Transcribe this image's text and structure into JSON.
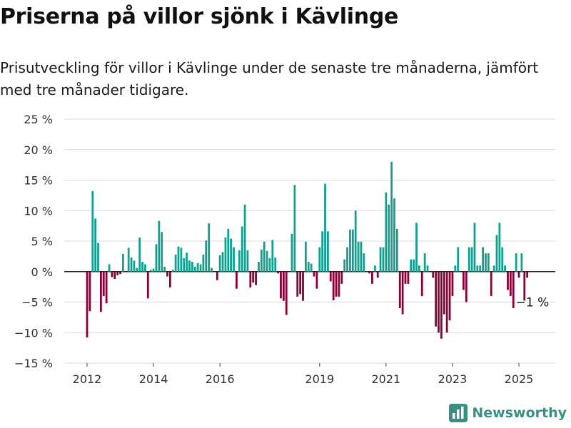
{
  "header": {
    "title": "Priserna på villor sjönk i Kävlinge",
    "subtitle": "Prisutveckling för villor i Kävlinge under de senaste tre månaderna, jämfört med tre månader tidigare."
  },
  "brand": {
    "name": "Newsworthy",
    "icon": "bar-chart-logo-icon"
  },
  "colors": {
    "positive": "#11a08f",
    "negative": "#8b0038",
    "grid": "#d9d9d9",
    "axis": "#222222"
  },
  "chart_data": {
    "type": "bar",
    "xlabel": "",
    "ylabel": "",
    "ylim": [
      -15,
      25
    ],
    "y_ticks": [
      -15,
      -10,
      -5,
      0,
      5,
      10,
      15,
      20,
      25
    ],
    "y_tick_labels": [
      "−15 %",
      "−10 %",
      "−5 %",
      "0 %",
      "5 %",
      "10 %",
      "15 %",
      "20 %",
      "25 %"
    ],
    "x_ticks": [
      2012,
      2014,
      2016,
      2019,
      2021,
      2023,
      2025
    ],
    "x_tick_labels": [
      "2012",
      "2014",
      "2016",
      "2019",
      "2021",
      "2023",
      "2025"
    ],
    "grid": true,
    "annotation": {
      "x": 2025.25,
      "y": -1,
      "text": "−1 %"
    },
    "x": [
      2012.0,
      2012.083,
      2012.167,
      2012.25,
      2012.333,
      2012.417,
      2012.5,
      2012.583,
      2012.667,
      2012.75,
      2012.833,
      2012.917,
      2013.0,
      2013.083,
      2013.167,
      2013.25,
      2013.333,
      2013.417,
      2013.5,
      2013.583,
      2013.667,
      2013.75,
      2013.833,
      2013.917,
      2014.0,
      2014.083,
      2014.167,
      2014.25,
      2014.333,
      2014.417,
      2014.5,
      2014.583,
      2014.667,
      2014.75,
      2014.833,
      2014.917,
      2015.0,
      2015.083,
      2015.167,
      2015.25,
      2015.333,
      2015.417,
      2015.5,
      2015.583,
      2015.667,
      2015.75,
      2015.833,
      2015.917,
      2016.0,
      2016.083,
      2016.167,
      2016.25,
      2016.333,
      2016.417,
      2016.5,
      2016.583,
      2016.667,
      2016.75,
      2016.833,
      2016.917,
      2017.0,
      2017.083,
      2017.167,
      2017.25,
      2017.333,
      2017.417,
      2017.5,
      2017.583,
      2017.667,
      2017.75,
      2017.833,
      2017.917,
      2018.0,
      2018.083,
      2018.167,
      2018.25,
      2018.333,
      2018.417,
      2018.5,
      2018.583,
      2018.667,
      2018.75,
      2018.833,
      2018.917,
      2019.0,
      2019.083,
      2019.167,
      2019.25,
      2019.333,
      2019.417,
      2019.5,
      2019.583,
      2019.667,
      2019.75,
      2019.833,
      2019.917,
      2020.0,
      2020.083,
      2020.167,
      2020.25,
      2020.333,
      2020.417,
      2020.5,
      2020.583,
      2020.667,
      2020.75,
      2020.833,
      2020.917,
      2021.0,
      2021.083,
      2021.167,
      2021.25,
      2021.333,
      2021.417,
      2021.5,
      2021.583,
      2021.667,
      2021.75,
      2021.833,
      2021.917,
      2022.0,
      2022.083,
      2022.167,
      2022.25,
      2022.333,
      2022.417,
      2022.5,
      2022.583,
      2022.667,
      2022.75,
      2022.833,
      2022.917,
      2023.0,
      2023.083,
      2023.167,
      2023.25,
      2023.333,
      2023.417,
      2023.5,
      2023.583,
      2023.667,
      2023.75,
      2023.833,
      2023.917,
      2024.0,
      2024.083,
      2024.167,
      2024.25,
      2024.333,
      2024.417,
      2024.5,
      2024.583,
      2024.667,
      2024.75,
      2024.833,
      2024.917,
      2025.0,
      2025.083,
      2025.167,
      2025.25
    ],
    "values": [
      -10.8,
      -6.5,
      13.2,
      8.7,
      4.7,
      -6.6,
      -4,
      -5.2,
      1.2,
      -0.9,
      -1.2,
      -0.6,
      -0.4,
      2.9,
      0,
      3.9,
      2.3,
      1.8,
      0.6,
      5.6,
      1.6,
      1.2,
      -4.4,
      0.3,
      0.5,
      4.5,
      8.3,
      6.5,
      0.8,
      -0.8,
      -2.6,
      0.3,
      2.8,
      4.1,
      3.9,
      2.2,
      3.1,
      1.8,
      1.6,
      0.8,
      1.4,
      1.2,
      2.8,
      5.1,
      7.9,
      0.6,
      0,
      -1.4,
      2.7,
      3.2,
      5.6,
      7,
      5.4,
      4,
      -2.8,
      3.5,
      7.4,
      11,
      3.5,
      -2.6,
      -1.8,
      -2.2,
      1.6,
      3.6,
      4.9,
      3.4,
      2.2,
      5.2,
      2.3,
      -0.3,
      -4.4,
      -4.8,
      -7.1,
      0,
      6.2,
      14.2,
      -4.1,
      -3.7,
      -4.8,
      4.9,
      1.6,
      1.3,
      -0.8,
      -2.8,
      4,
      6.6,
      14.4,
      6.6,
      -1.6,
      -4.7,
      -4.1,
      -4.1,
      -2,
      2,
      4,
      6.9,
      6.9,
      10,
      4.9,
      4.9,
      3,
      0,
      -0.3,
      -2,
      1,
      -1,
      4,
      4,
      13,
      11,
      18,
      12,
      7,
      -6,
      -7,
      -2,
      -2,
      2,
      2,
      8,
      1,
      -4,
      3,
      1,
      0,
      -1,
      -9,
      -10,
      -11,
      -7,
      -10,
      -8,
      -4,
      1,
      4,
      0,
      -3,
      -5,
      4,
      4,
      8,
      1,
      1,
      4,
      3,
      3,
      -4,
      1,
      6,
      8,
      4,
      1,
      -3,
      -4,
      -6,
      3,
      -1,
      3,
      -5,
      -1
    ]
  }
}
